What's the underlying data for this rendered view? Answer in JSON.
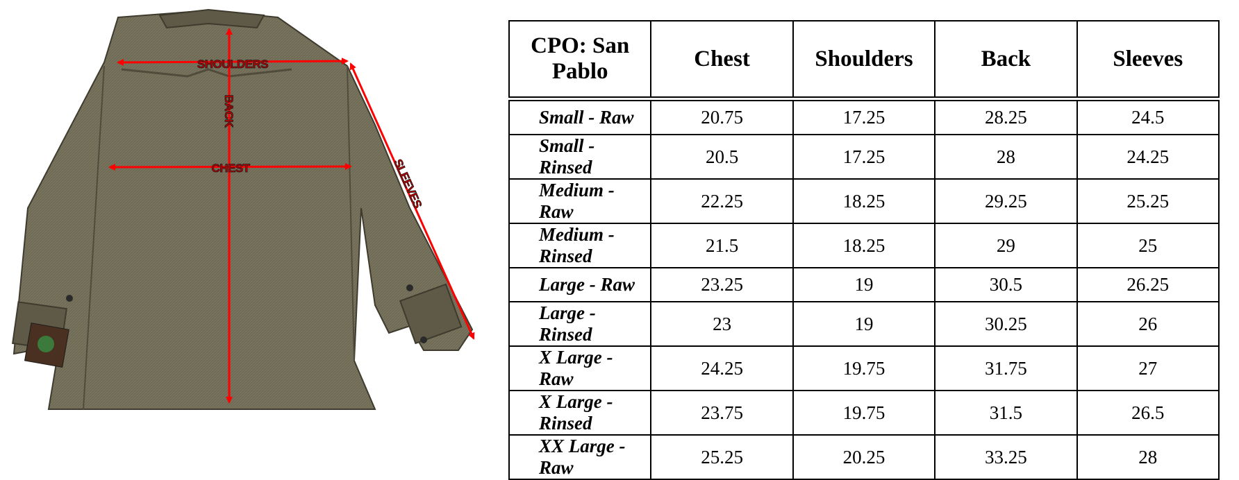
{
  "photo": {
    "labels": {
      "shoulders": "SHOULDERS",
      "back": "BACK",
      "chest": "CHEST",
      "sleeves": "SLEEVES"
    },
    "colors": {
      "arrow": "#ff0000",
      "fabric": "#6e6a55",
      "fabric_dark": "#4f4c3c"
    }
  },
  "table": {
    "title": "CPO: San Pablo",
    "columns": [
      "Chest",
      "Shoulders",
      "Back",
      "Sleeves"
    ],
    "rows": [
      {
        "size": "Small - Raw",
        "values": [
          "20.75",
          "17.25",
          "28.25",
          "24.5"
        ]
      },
      {
        "size": "Small - Rinsed",
        "values": [
          "20.5",
          "17.25",
          "28",
          "24.25"
        ]
      },
      {
        "size": "Medium - Raw",
        "values": [
          "22.25",
          "18.25",
          "29.25",
          "25.25"
        ]
      },
      {
        "size": "Medium - Rinsed",
        "values": [
          "21.5",
          "18.25",
          "29",
          "25"
        ]
      },
      {
        "size": "Large - Raw",
        "values": [
          "23.25",
          "19",
          "30.5",
          "26.25"
        ]
      },
      {
        "size": "Large - Rinsed",
        "values": [
          "23",
          "19",
          "30.25",
          "26"
        ]
      },
      {
        "size": "X Large - Raw",
        "values": [
          "24.25",
          "19.75",
          "31.75",
          "27"
        ]
      },
      {
        "size": "X Large - Rinsed",
        "values": [
          "23.75",
          "19.75",
          "31.5",
          "26.5"
        ]
      },
      {
        "size": "XX Large - Raw",
        "values": [
          "25.25",
          "20.25",
          "33.25",
          "28"
        ]
      }
    ]
  }
}
